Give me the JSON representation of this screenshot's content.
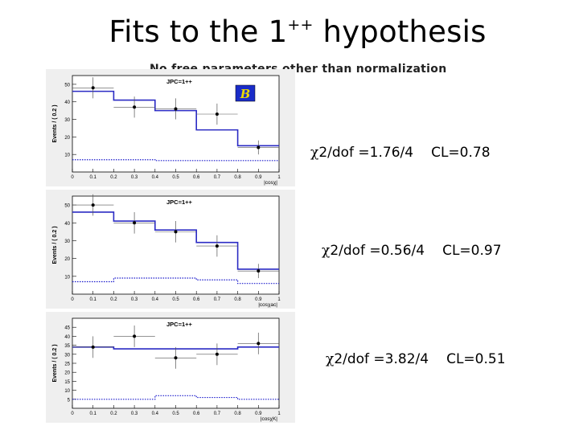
{
  "slide": {
    "title_main": "Fits to the 1",
    "title_sup": "++",
    "title_rest": " hypothesis",
    "subtitle": "No  free  parameters other than normalization"
  },
  "colors": {
    "fit_line": "#2b2bc4",
    "background_line": "#1a1acc",
    "data_point": "#000000",
    "error_bar": "#555555",
    "panel_bg": "#efefef"
  },
  "results": [
    {
      "chi2": "2/dof =1.76/4",
      "cl": "CL=0.78"
    },
    {
      "chi2": "2/dof =0.56/4",
      "cl": "CL=0.97"
    },
    {
      "chi2": "2/dof =3.82/4",
      "cl": "CL=0.51"
    }
  ],
  "chart_data": [
    {
      "type": "histogram",
      "ylabel": "Events / ( 0.2 )",
      "xlabel": "|cosχ|",
      "legend_label": "JPC=1++",
      "ylim": [
        0,
        55
      ],
      "yticks": [
        10,
        20,
        30,
        40,
        50
      ],
      "xlim": [
        0,
        1
      ],
      "xticks": [
        "0",
        "0.1",
        "0.2",
        "0.3",
        "0.4",
        "0.5",
        "0.6",
        "0.7",
        "0.8",
        "0.9",
        "1"
      ],
      "logo": true,
      "bin_edges": [
        0,
        0.2,
        0.4,
        0.6,
        0.8,
        1.0
      ],
      "fit": [
        46,
        41,
        35,
        24,
        15
      ],
      "background": [
        7,
        7,
        6.5,
        6.5,
        6.5
      ],
      "data": {
        "x": [
          0.1,
          0.3,
          0.5,
          0.7,
          0.9
        ],
        "y": [
          48,
          37,
          36,
          33,
          14
        ],
        "err": [
          6,
          6,
          6,
          6,
          4
        ]
      }
    },
    {
      "type": "histogram",
      "ylabel": "Events / ( 0.2 )",
      "xlabel": "|cosχac|",
      "legend_label": "JPC=1++",
      "ylim": [
        0,
        55
      ],
      "yticks": [
        10,
        20,
        30,
        40,
        50
      ],
      "xlim": [
        0,
        1
      ],
      "xticks": [
        "0",
        "0.1",
        "0.2",
        "0.3",
        "0.4",
        "0.5",
        "0.6",
        "0.7",
        "0.8",
        "0.9",
        "1"
      ],
      "logo": false,
      "bin_edges": [
        0,
        0.2,
        0.4,
        0.6,
        0.8,
        1.0
      ],
      "fit": [
        46,
        41,
        36,
        29,
        14
      ],
      "background": [
        7,
        9,
        9,
        8,
        6
      ],
      "data": {
        "x": [
          0.1,
          0.3,
          0.5,
          0.7,
          0.9
        ],
        "y": [
          50,
          40,
          35,
          27,
          13
        ],
        "err": [
          6,
          6,
          6,
          6,
          4
        ]
      }
    },
    {
      "type": "histogram",
      "ylabel": "Events / ( 0.2 )",
      "xlabel": "|cosχK|",
      "legend_label": "JPC=1++",
      "ylim": [
        0,
        50
      ],
      "yticks": [
        5,
        10,
        15,
        20,
        25,
        30,
        35,
        40,
        45
      ],
      "xlim": [
        0,
        1
      ],
      "xticks": [
        "0",
        "0.1",
        "0.2",
        "0.3",
        "0.4",
        "0.5",
        "0.6",
        "0.7",
        "0.8",
        "0.9",
        "1"
      ],
      "logo": false,
      "bin_edges": [
        0,
        0.2,
        0.4,
        0.6,
        0.8,
        1.0
      ],
      "fit": [
        34,
        33,
        33,
        33,
        34
      ],
      "background": [
        5,
        5,
        7,
        6,
        5
      ],
      "data": {
        "x": [
          0.1,
          0.3,
          0.5,
          0.7,
          0.9
        ],
        "y": [
          34,
          40,
          28,
          30,
          36
        ],
        "err": [
          6,
          6,
          6,
          6,
          6
        ]
      }
    }
  ]
}
